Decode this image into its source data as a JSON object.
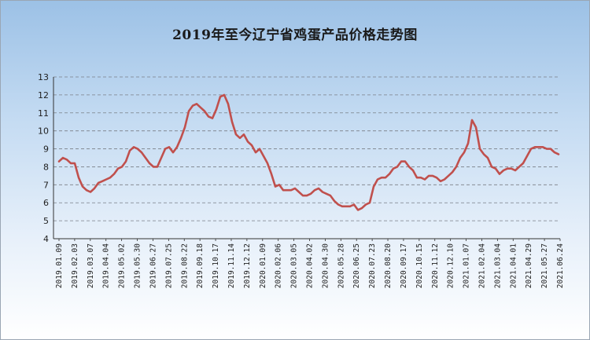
{
  "chart_data": {
    "type": "line",
    "title": "2019年至今辽宁省鸡蛋产品价格走势图",
    "xlabel": "",
    "ylabel": "",
    "ylim": [
      4,
      13
    ],
    "yticks": [
      4,
      5,
      6,
      7,
      8,
      9,
      10,
      11,
      12,
      13
    ],
    "grid": true,
    "legend": "none",
    "x_ticks": [
      "2019.01.09",
      "2019.02.03",
      "2019.03.07",
      "2019.04.04",
      "2019.05.02",
      "2019.05.30",
      "2019.06.27",
      "2019.07.25",
      "2019.08.22",
      "2019.09.18",
      "2019.10.17",
      "2019.11.14",
      "2019.12.12",
      "2020.01.09",
      "2020.02.06",
      "2020.03.05",
      "2020.04.02",
      "2020.04.30",
      "2020.05.28",
      "2020.06.25",
      "2020.07.23",
      "2020.08.20",
      "2020.09.17",
      "2020.10.15",
      "2020.11.12",
      "2020.12.10",
      "2021.01.07",
      "2021.02.04",
      "2021.03.04",
      "2021.04.01",
      "2021.04.29",
      "2021.05.27",
      "2021.06.24"
    ],
    "series": [
      {
        "color": "#c0504d",
        "values": [
          8.3,
          8.5,
          8.4,
          8.2,
          8.2,
          7.4,
          6.9,
          6.7,
          6.6,
          6.8,
          7.1,
          7.2,
          7.3,
          7.4,
          7.6,
          7.9,
          8.0,
          8.3,
          8.9,
          9.1,
          9.0,
          8.8,
          8.5,
          8.2,
          8.0,
          8.0,
          8.5,
          9.0,
          9.1,
          8.8,
          9.1,
          9.6,
          10.2,
          11.1,
          11.4,
          11.5,
          11.3,
          11.1,
          10.8,
          10.7,
          11.2,
          11.9,
          12.0,
          11.5,
          10.5,
          9.8,
          9.6,
          9.8,
          9.4,
          9.2,
          8.8,
          9.0,
          8.6,
          8.2,
          7.6,
          6.9,
          7.0,
          6.7,
          6.7,
          6.7,
          6.8,
          6.6,
          6.4,
          6.4,
          6.5,
          6.7,
          6.8,
          6.6,
          6.5,
          6.4,
          6.1,
          5.9,
          5.8,
          5.8,
          5.8,
          5.9,
          5.6,
          5.7,
          5.9,
          6.0,
          6.9,
          7.3,
          7.4,
          7.4,
          7.6,
          7.9,
          8.0,
          8.3,
          8.3,
          8.0,
          7.8,
          7.4,
          7.4,
          7.3,
          7.5,
          7.5,
          7.4,
          7.2,
          7.3,
          7.5,
          7.7,
          8.0,
          8.5,
          8.8,
          9.3,
          10.6,
          10.2,
          9.0,
          8.7,
          8.5,
          8.0,
          7.9,
          7.6,
          7.8,
          7.9,
          7.9,
          7.8,
          8.0,
          8.2,
          8.6,
          9.0,
          9.1,
          9.1,
          9.1,
          9.0,
          9.0,
          8.8,
          8.7
        ]
      }
    ]
  }
}
